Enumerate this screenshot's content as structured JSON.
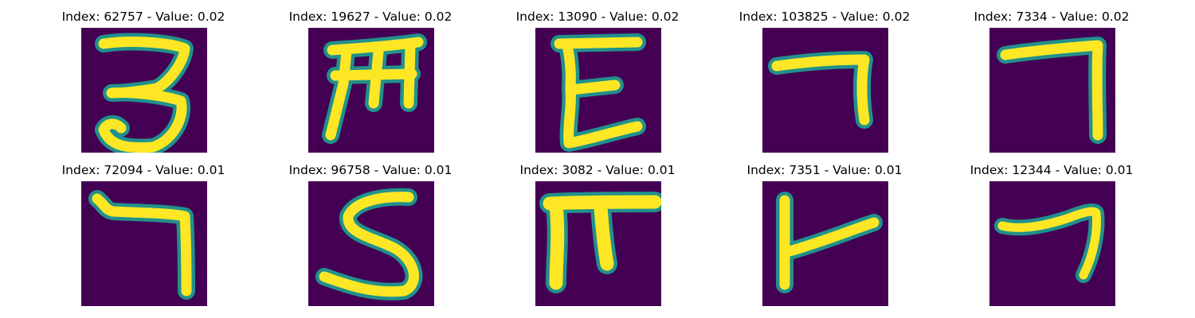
{
  "colors": {
    "background": "#440154",
    "glyph_edge": "#21918c",
    "glyph_core": "#fde725"
  },
  "panels": [
    {
      "title": "Index: 62757 - Value: 0.02",
      "glyph": "three-like"
    },
    {
      "title": "Index: 19627 - Value: 0.02",
      "glyph": "m-like"
    },
    {
      "title": "Index: 13090 - Value: 0.02",
      "glyph": "e-like"
    },
    {
      "title": "Index: 103825 - Value: 0.02",
      "glyph": "seven-like"
    },
    {
      "title": "Index: 7334 - Value: 0.02",
      "glyph": "seven-like"
    },
    {
      "title": "Index: 72094 - Value: 0.01",
      "glyph": "seven-like"
    },
    {
      "title": "Index: 96758 - Value: 0.01",
      "glyph": "s-like"
    },
    {
      "title": "Index: 3082 - Value: 0.01",
      "glyph": "pi-like"
    },
    {
      "title": "Index: 7351 - Value: 0.01",
      "glyph": "r-like"
    },
    {
      "title": "Index: 12344 - Value: 0.01",
      "glyph": "seven-like"
    }
  ]
}
